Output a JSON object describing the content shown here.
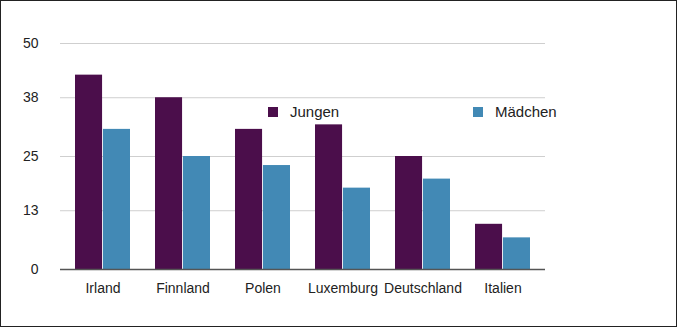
{
  "chart_data": {
    "type": "bar",
    "categories": [
      "Irland",
      "Finnland",
      "Polen",
      "Luxemburg",
      "Deutschland",
      "Italien"
    ],
    "series": [
      {
        "name": "Jungen",
        "color": "#4b0e4b",
        "values": [
          43,
          38,
          31,
          32,
          25,
          10
        ]
      },
      {
        "name": "Mädchen",
        "color": "#4289b5",
        "values": [
          31,
          25,
          23,
          18,
          20,
          7
        ]
      }
    ],
    "ylim": [
      0,
      50
    ],
    "yticks": [
      0,
      13,
      25,
      38,
      50
    ],
    "grid": true,
    "legend": "top"
  }
}
